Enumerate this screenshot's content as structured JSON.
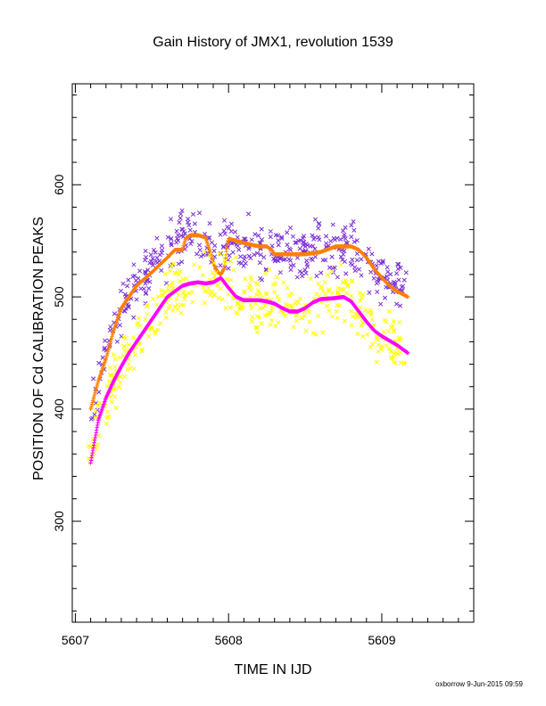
{
  "chart_data": {
    "type": "scatter",
    "title": "Gain History of JMX1, revolution 1539",
    "xlabel": "TIME IN IJD",
    "ylabel": "POSITION OF Cd CALIBRATION PEAKS",
    "xlim": [
      5606.98,
      5609.6
    ],
    "ylim": [
      210,
      690
    ],
    "x_ticks": [
      5607,
      5608,
      5609
    ],
    "x_tick_labels": [
      "5607",
      "5608",
      "5609"
    ],
    "y_ticks": [
      300,
      400,
      500,
      600
    ],
    "y_tick_labels": [
      "300",
      "400",
      "500",
      "600"
    ],
    "grid": false,
    "legend": "none",
    "footer": "oxborrow  9-Jun-2015 09:59",
    "series": [
      {
        "color": "#7b2fd6",
        "marker": "x",
        "scatter_of": "orange",
        "spread": 14,
        "x": [
          5607.1,
          5607.15,
          5607.2,
          5607.3,
          5607.4,
          5607.5,
          5607.6,
          5607.7,
          5607.8,
          5607.9,
          5608.0,
          5608.1,
          5608.2,
          5608.3,
          5608.4,
          5608.5,
          5608.6,
          5608.7,
          5608.8,
          5608.9,
          5609.0,
          5609.1,
          5609.17
        ],
        "y": [
          400,
          425,
          455,
          490,
          510,
          525,
          540,
          555,
          555,
          540,
          550,
          548,
          545,
          540,
          538,
          542,
          545,
          545,
          543,
          530,
          518,
          508,
          505
        ]
      },
      {
        "color": "#ff7f00",
        "marker": "+",
        "x": [
          5607.1,
          5607.15,
          5607.2,
          5607.25,
          5607.3,
          5607.4,
          5607.5,
          5607.6,
          5607.65,
          5607.7,
          5607.72,
          5607.75,
          5607.8,
          5607.85,
          5607.88,
          5607.9,
          5607.93,
          5607.95,
          5607.97,
          5607.99,
          5608.0,
          5608.05,
          5608.1,
          5608.2,
          5608.25,
          5608.28,
          5608.3,
          5608.35,
          5608.4,
          5608.5,
          5608.6,
          5608.7,
          5608.8,
          5608.85,
          5608.9,
          5608.95,
          5609.0,
          5609.05,
          5609.1,
          5609.17
        ],
        "y": [
          400,
          425,
          445,
          470,
          490,
          510,
          522,
          535,
          542,
          542,
          552,
          555,
          555,
          553,
          540,
          530,
          522,
          520,
          525,
          545,
          552,
          550,
          548,
          545,
          545,
          542,
          538,
          538,
          538,
          538,
          540,
          545,
          545,
          542,
          535,
          525,
          517,
          510,
          505,
          500
        ]
      },
      {
        "color": "#ffff00",
        "marker": "x",
        "scatter_of": "magenta",
        "spread": 16,
        "x": [
          5607.08,
          5607.12,
          5607.2,
          5607.3,
          5607.4,
          5607.5,
          5607.6,
          5607.7,
          5607.8,
          5607.9,
          5607.95,
          5608.0,
          5608.1,
          5608.2,
          5608.3,
          5608.35,
          5608.4,
          5608.5,
          5608.6,
          5608.7,
          5608.75,
          5608.8,
          5608.9,
          5609.0,
          5609.1,
          5609.17
        ],
        "y": [
          345,
          370,
          405,
          435,
          460,
          480,
          495,
          510,
          512,
          513,
          517,
          507,
          497,
          496,
          494,
          490,
          487,
          487,
          495,
          499,
          500,
          495,
          478,
          465,
          457,
          450
        ]
      },
      {
        "color": "#ff00ff",
        "marker": "+",
        "x": [
          5607.1,
          5607.15,
          5607.2,
          5607.25,
          5607.3,
          5607.35,
          5607.4,
          5607.45,
          5607.5,
          5607.55,
          5607.6,
          5607.65,
          5607.7,
          5607.75,
          5607.8,
          5607.85,
          5607.9,
          5607.95,
          5608.0,
          5608.05,
          5608.1,
          5608.2,
          5608.25,
          5608.3,
          5608.35,
          5608.4,
          5608.45,
          5608.5,
          5608.55,
          5608.6,
          5608.7,
          5608.75,
          5608.8,
          5608.85,
          5608.9,
          5608.95,
          5609.0,
          5609.1,
          5609.17
        ],
        "y": [
          352,
          390,
          410,
          425,
          438,
          450,
          460,
          470,
          480,
          490,
          500,
          505,
          510,
          512,
          513,
          512,
          513,
          517,
          508,
          500,
          497,
          497,
          496,
          494,
          490,
          487,
          487,
          490,
          495,
          498,
          499,
          500,
          496,
          487,
          478,
          470,
          465,
          457,
          450
        ]
      }
    ]
  }
}
